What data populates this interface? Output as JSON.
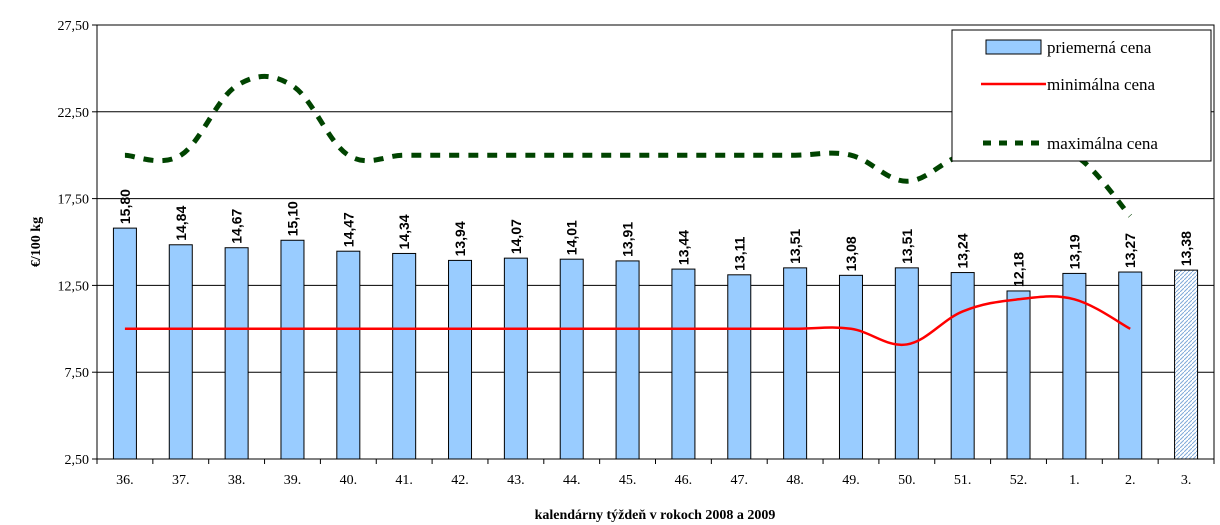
{
  "chart_data": {
    "type": "bar",
    "title": "",
    "xlabel": "kalendárny týždeň v rokoch 2008 a 2009",
    "ylabel": "€/100 kg",
    "ylim": [
      2.5,
      27.5
    ],
    "y_ticks": [
      "2,50",
      "7,50",
      "12,50",
      "17,50",
      "22,50",
      "27,50"
    ],
    "y_tick_values": [
      2.5,
      7.5,
      12.5,
      17.5,
      22.5,
      27.5
    ],
    "grid": true,
    "legend_position": "top-right",
    "categories": [
      "36.",
      "37.",
      "38.",
      "39.",
      "40.",
      "41.",
      "42.",
      "43.",
      "44.",
      "45.",
      "46.",
      "47.",
      "48.",
      "49.",
      "50.",
      "51.",
      "52.",
      "1.",
      "2.",
      "3."
    ],
    "series": [
      {
        "name": "priemerná cena",
        "kind": "bar",
        "color": "#99ccff",
        "values": [
          15.8,
          14.84,
          14.67,
          15.1,
          14.47,
          14.34,
          13.94,
          14.07,
          14.01,
          13.91,
          13.44,
          13.11,
          13.51,
          13.08,
          13.51,
          13.24,
          12.18,
          13.19,
          13.27,
          13.38
        ],
        "labels": [
          "15,80",
          "14,84",
          "14,67",
          "15,10",
          "14,47",
          "14,34",
          "13,94",
          "14,07",
          "14,01",
          "13,91",
          "13,44",
          "13,11",
          "13,51",
          "13,08",
          "13,51",
          "13,24",
          "12,18",
          "13,19",
          "13,27",
          "13,38"
        ],
        "last_bar_hatched": true
      },
      {
        "name": "minimálna cena",
        "kind": "line",
        "color": "#ff0000",
        "values": [
          10.0,
          10.0,
          10.0,
          10.0,
          10.0,
          10.0,
          10.0,
          10.0,
          10.0,
          10.0,
          10.0,
          10.0,
          10.0,
          10.0,
          9.1,
          11.0,
          11.7,
          11.7,
          10.0,
          null
        ]
      },
      {
        "name": "maximálna cena",
        "kind": "dashed-line",
        "color": "#004400",
        "values": [
          20.0,
          20.0,
          24.0,
          24.0,
          20.0,
          20.0,
          20.0,
          20.0,
          20.0,
          20.0,
          20.0,
          20.0,
          20.0,
          20.0,
          18.5,
          20.0,
          20.0,
          20.0,
          16.5,
          null
        ]
      }
    ]
  }
}
